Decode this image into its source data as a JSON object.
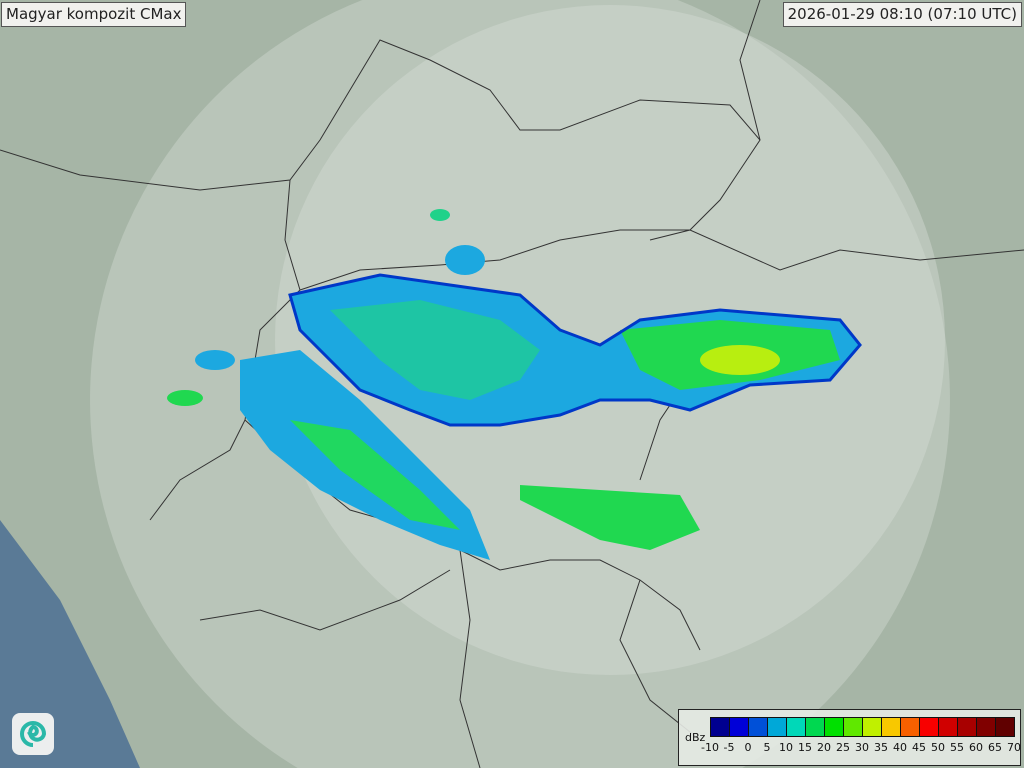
{
  "header": {
    "title": "Magyar kompozit  CMax",
    "timestamp": "2026-01-29 08:10 (07:10 UTC)"
  },
  "legend": {
    "unit": "dBz",
    "ticks": [
      "-10",
      "-5",
      "0",
      "5",
      "10",
      "15",
      "20",
      "25",
      "30",
      "35",
      "40",
      "45",
      "50",
      "55",
      "60",
      "65",
      "70"
    ],
    "colors": [
      "#000090",
      "#0000d8",
      "#0050d8",
      "#00a8d8",
      "#00d8b8",
      "#00d850",
      "#00e000",
      "#60e800",
      "#c0f000",
      "#f8c800",
      "#f86000",
      "#f80000",
      "#d00000",
      "#a80000",
      "#800000",
      "#600000"
    ]
  },
  "map": {
    "radar_coverage": "composite",
    "logo_icon": "swirl-logo-icon",
    "sea_color": "#5a7a96",
    "land_color": "#a9b8a8"
  }
}
